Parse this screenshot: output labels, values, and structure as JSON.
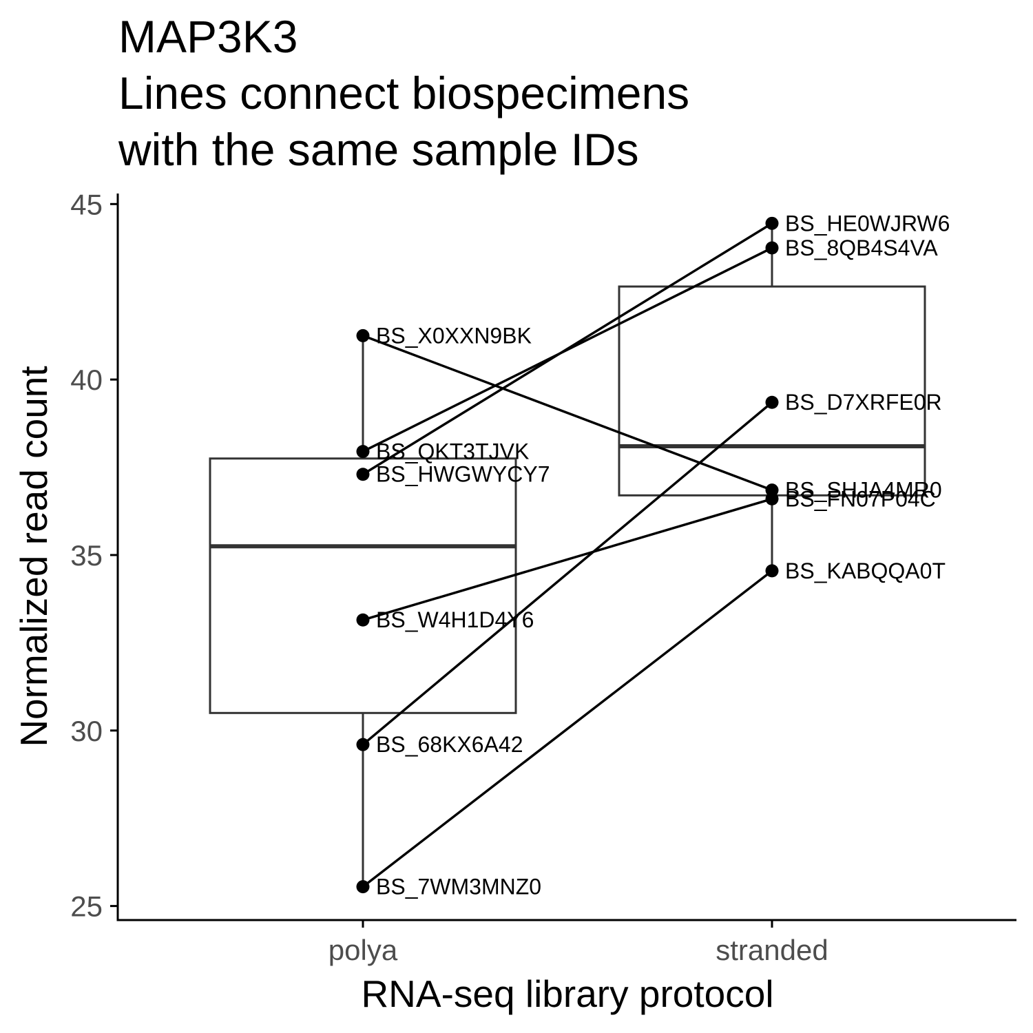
{
  "chart_data": {
    "type": "box",
    "title_lines": [
      "MAP3K3",
      "Lines connect biospecimens",
      "with the same sample IDs"
    ],
    "xlabel": "RNA-seq library protocol",
    "ylabel": "Normalized read count",
    "categories": [
      "polya",
      "stranded"
    ],
    "ylim": [
      24.6,
      45.3
    ],
    "yticks": [
      25,
      30,
      35,
      40,
      45
    ],
    "grid": false,
    "legend": "none",
    "colors": {
      "line": "#000000",
      "box": "#333333",
      "tick_text": "#4d4d4d"
    },
    "boxes": [
      {
        "category": "polya",
        "lower_whisker": 25.55,
        "q1": 30.5,
        "median": 35.25,
        "q3": 37.75,
        "upper_whisker": 41.25
      },
      {
        "category": "stranded",
        "lower_whisker": 34.55,
        "q1": 36.7,
        "median": 38.1,
        "q3": 42.65,
        "upper_whisker": 44.45
      }
    ],
    "pairs": [
      {
        "polya": {
          "label": "BS_X0XXN9BK",
          "value": 41.25
        },
        "stranded": {
          "label": "BS_SHJA4MR0",
          "value": 36.85
        }
      },
      {
        "polya": {
          "label": "BS_QKT3TJVK",
          "value": 37.95
        },
        "stranded": {
          "label": "BS_8QB4S4VA",
          "value": 43.75
        }
      },
      {
        "polya": {
          "label": "BS_HWGWYCY7",
          "value": 37.3
        },
        "stranded": {
          "label": "BS_HE0WJRW6",
          "value": 44.45
        }
      },
      {
        "polya": {
          "label": "BS_W4H1D4Y6",
          "value": 33.15
        },
        "stranded": {
          "label": "BS_FN07P04C",
          "value": 36.6
        }
      },
      {
        "polya": {
          "label": "BS_68KX6A42",
          "value": 29.6
        },
        "stranded": {
          "label": "BS_D7XRFE0R",
          "value": 39.35
        }
      },
      {
        "polya": {
          "label": "BS_7WM3MNZ0",
          "value": 25.55
        },
        "stranded": {
          "label": "BS_KABQQA0T",
          "value": 34.55
        }
      }
    ]
  }
}
